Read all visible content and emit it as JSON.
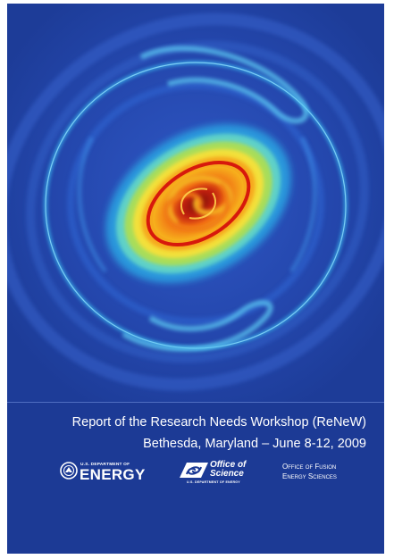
{
  "cover": {
    "background_color": "#1f3f9d",
    "artwork": "plasma-turbulence-spiral",
    "title": "Report of the Research Needs Workshop (ReNeW)",
    "subtitle": "Bethesda, Maryland – June 8-12, 2009"
  },
  "logos": {
    "doe": {
      "icon": "doe-seal-icon",
      "small_text": "U.S. DEPARTMENT OF",
      "big_text": "ENERGY"
    },
    "office_of_science": {
      "icon": "office-of-science-emblem-icon",
      "line1": "Office of",
      "line2": "Science",
      "small_text": "U.S. DEPARTMENT OF ENERGY"
    },
    "ofes": {
      "line1": "Office of Fusion",
      "line2": "Energy Sciences"
    }
  }
}
